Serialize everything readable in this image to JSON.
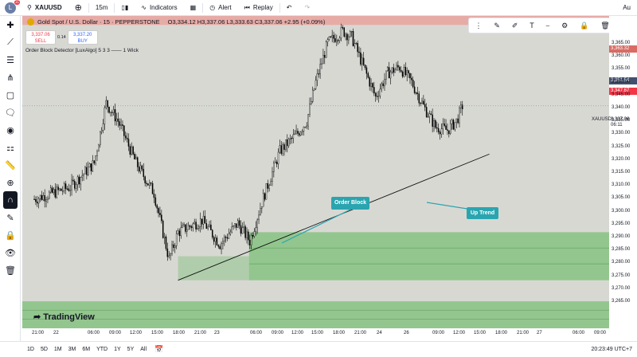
{
  "topbar": {
    "avatar_letter": "L",
    "avatar_badge": "11",
    "symbol": "XAUUSD",
    "interval": "15m",
    "indicators": "Indicators",
    "alert": "Alert",
    "replay": "Replay",
    "right_letter": "Au"
  },
  "legend": {
    "title": "Gold Spot / U.S. Dollar · 15 · PEPPERSTONE",
    "ohlc": "O3,334.12 H3,337.06 L3,333.63 C3,337.06 +2.95 (+0.09%)"
  },
  "trade": {
    "sell_price": "3,337.06",
    "sell_label": "SELL",
    "spread": "0.14",
    "buy_price": "3,337.20",
    "buy_label": "BUY"
  },
  "indicator": "Order Block Detector [LuxAlgo] 5 3 3 —— 1 Wick",
  "callouts": {
    "order_block": "Order Block",
    "up_trend": "Up Trend"
  },
  "price_axis": {
    "ticks": [
      "3,365.00",
      "3,360.00",
      "3,355.00",
      "3,350.00",
      "3,345.00",
      "3,340.00",
      "3,335.00",
      "3,330.00",
      "3,325.00",
      "3,320.00",
      "3,315.00",
      "3,310.00",
      "3,305.00",
      "3,300.00",
      "3,295.00",
      "3,290.00",
      "3,285.00",
      "3,280.00",
      "3,275.00",
      "3,270.00",
      "3,265.00"
    ],
    "tag_red_top": "3,363.32",
    "tag_blue": "3,351.54",
    "tag_red": "3,347.67",
    "symbol_label": "XAUUSD",
    "current_price": "3,337.06",
    "countdown": "06:11"
  },
  "time_axis": [
    "21:00",
    "22",
    "06:00",
    "09:00",
    "12:00",
    "15:00",
    "18:00",
    "21:00",
    "23",
    "06:00",
    "09:00",
    "12:00",
    "15:00",
    "18:00",
    "21:00",
    "24",
    "26",
    "09:00",
    "12:00",
    "15:00",
    "18:00",
    "21:00",
    "27",
    "06:00",
    "09:00"
  ],
  "bottombar": {
    "ranges": [
      "1D",
      "5D",
      "1M",
      "3M",
      "6M",
      "YTD",
      "1Y",
      "5Y",
      "All"
    ],
    "clock": "20:23:49 UTC+7"
  },
  "brand": "TradingView",
  "colors": {
    "bull_zone": "#8fc58a",
    "bear_zone": "#e8a9a3",
    "callout": "#2aa5b0",
    "chart_bg": "#d8d8d3"
  },
  "chart_data": {
    "type": "candlestick",
    "symbol": "XAUUSD",
    "timeframe": "15",
    "y_range": [
      3263,
      3367
    ],
    "close_path": [
      {
        "t": "21 21:00",
        "p": 3306
      },
      {
        "t": "22 03:00",
        "p": 3310
      },
      {
        "t": "22 07:00",
        "p": 3318
      },
      {
        "t": "22 09:00",
        "p": 3338
      },
      {
        "t": "22 11:00",
        "p": 3332
      },
      {
        "t": "22 14:00",
        "p": 3318
      },
      {
        "t": "22 17:00",
        "p": 3308
      },
      {
        "t": "22 19:30",
        "p": 3286
      },
      {
        "t": "22 21:00",
        "p": 3295
      },
      {
        "t": "23 01:00",
        "p": 3299
      },
      {
        "t": "23 04:00",
        "p": 3291
      },
      {
        "t": "23 07:00",
        "p": 3298
      },
      {
        "t": "23 09:00",
        "p": 3292
      },
      {
        "t": "23 11:00",
        "p": 3305
      },
      {
        "t": "23 14:00",
        "p": 3322
      },
      {
        "t": "23 17:00",
        "p": 3328
      },
      {
        "t": "23 18:30",
        "p": 3332
      },
      {
        "t": "23 20:00",
        "p": 3345
      },
      {
        "t": "23 22:00",
        "p": 3358
      },
      {
        "t": "24 00:30",
        "p": 3362
      },
      {
        "t": "24 02:00",
        "p": 3360
      },
      {
        "t": "24 04:00",
        "p": 3350
      },
      {
        "t": "24 06:00",
        "p": 3340
      },
      {
        "t": "24 08:00",
        "p": 3348
      },
      {
        "t": "24 10:00",
        "p": 3350
      },
      {
        "t": "24 12:00",
        "p": 3345
      },
      {
        "t": "24 14:00",
        "p": 3337
      },
      {
        "t": "24 16:00",
        "p": 3330
      },
      {
        "t": "24 18:00",
        "p": 3329
      },
      {
        "t": "24 19:30",
        "p": 3332
      },
      {
        "t": "24 20:30",
        "p": 3337
      }
    ],
    "zones": [
      {
        "kind": "bearish_order_block",
        "top": 3367,
        "bottom": 3364
      },
      {
        "kind": "bullish_order_block",
        "top": 3295,
        "bottom": 3279
      },
      {
        "kind": "bullish_order_block",
        "top": 3272,
        "bottom": 3263
      }
    ],
    "trendline": {
      "from": {
        "t": "22 21:00",
        "p": 3279
      },
      "to": {
        "t": "25 01:00",
        "p": 3321
      }
    }
  }
}
